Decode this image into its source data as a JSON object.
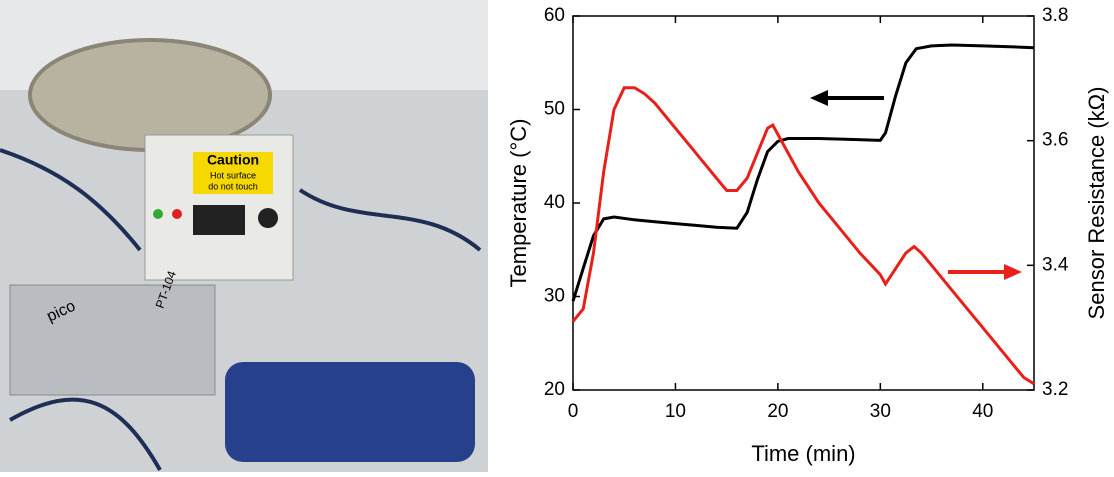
{
  "photo": {
    "labels": [
      "Caution",
      "Hot surface",
      "do not touch",
      "PT-104",
      "pico"
    ]
  },
  "chart_data": {
    "type": "line",
    "x_label": "Time (min)",
    "y_label": "Temperature (°C)",
    "y2_label": "Sensor Resistance (kΩ)",
    "xlim": [
      0,
      45
    ],
    "xticks": [
      0,
      10,
      20,
      30,
      40
    ],
    "ylim": [
      20,
      60
    ],
    "yticks": [
      20,
      30,
      40,
      50,
      60
    ],
    "y2lim": [
      3.2,
      3.8
    ],
    "y2ticks": [
      3.2,
      3.4,
      3.6,
      3.8
    ],
    "series": [
      {
        "color": "#000000",
        "x": [
          0,
          1,
          2,
          3,
          4,
          6,
          8,
          10,
          12,
          14,
          16,
          17,
          18,
          19,
          20,
          21,
          24,
          27,
          30,
          30.5,
          31.5,
          32.5,
          33.5,
          35,
          37,
          40,
          43,
          45
        ],
        "values": [
          29.5,
          33,
          36.5,
          38.3,
          38.5,
          38.2,
          38,
          37.8,
          37.6,
          37.4,
          37.3,
          39,
          42.5,
          45.5,
          46.6,
          46.9,
          46.9,
          46.8,
          46.7,
          47.5,
          51.5,
          55,
          56.5,
          56.8,
          56.9,
          56.8,
          56.7,
          56.6
        ]
      },
      {
        "color": "#e8201a",
        "axis": "y2",
        "x": [
          0,
          1,
          2,
          3,
          4,
          5,
          6,
          7,
          8,
          10,
          12,
          14,
          15,
          16,
          17,
          18,
          19,
          19.5,
          20,
          22,
          24,
          26,
          28,
          30,
          30.5,
          31.5,
          32.5,
          33.3,
          34,
          35,
          37,
          39,
          41,
          43,
          44,
          45
        ],
        "values": [
          3.31,
          3.33,
          3.42,
          3.55,
          3.65,
          3.685,
          3.685,
          3.675,
          3.66,
          3.62,
          3.58,
          3.54,
          3.52,
          3.52,
          3.54,
          3.58,
          3.62,
          3.625,
          3.61,
          3.55,
          3.5,
          3.46,
          3.42,
          3.385,
          3.37,
          3.395,
          3.42,
          3.43,
          3.42,
          3.4,
          3.36,
          3.32,
          3.28,
          3.24,
          3.22,
          3.21
        ]
      }
    ]
  }
}
